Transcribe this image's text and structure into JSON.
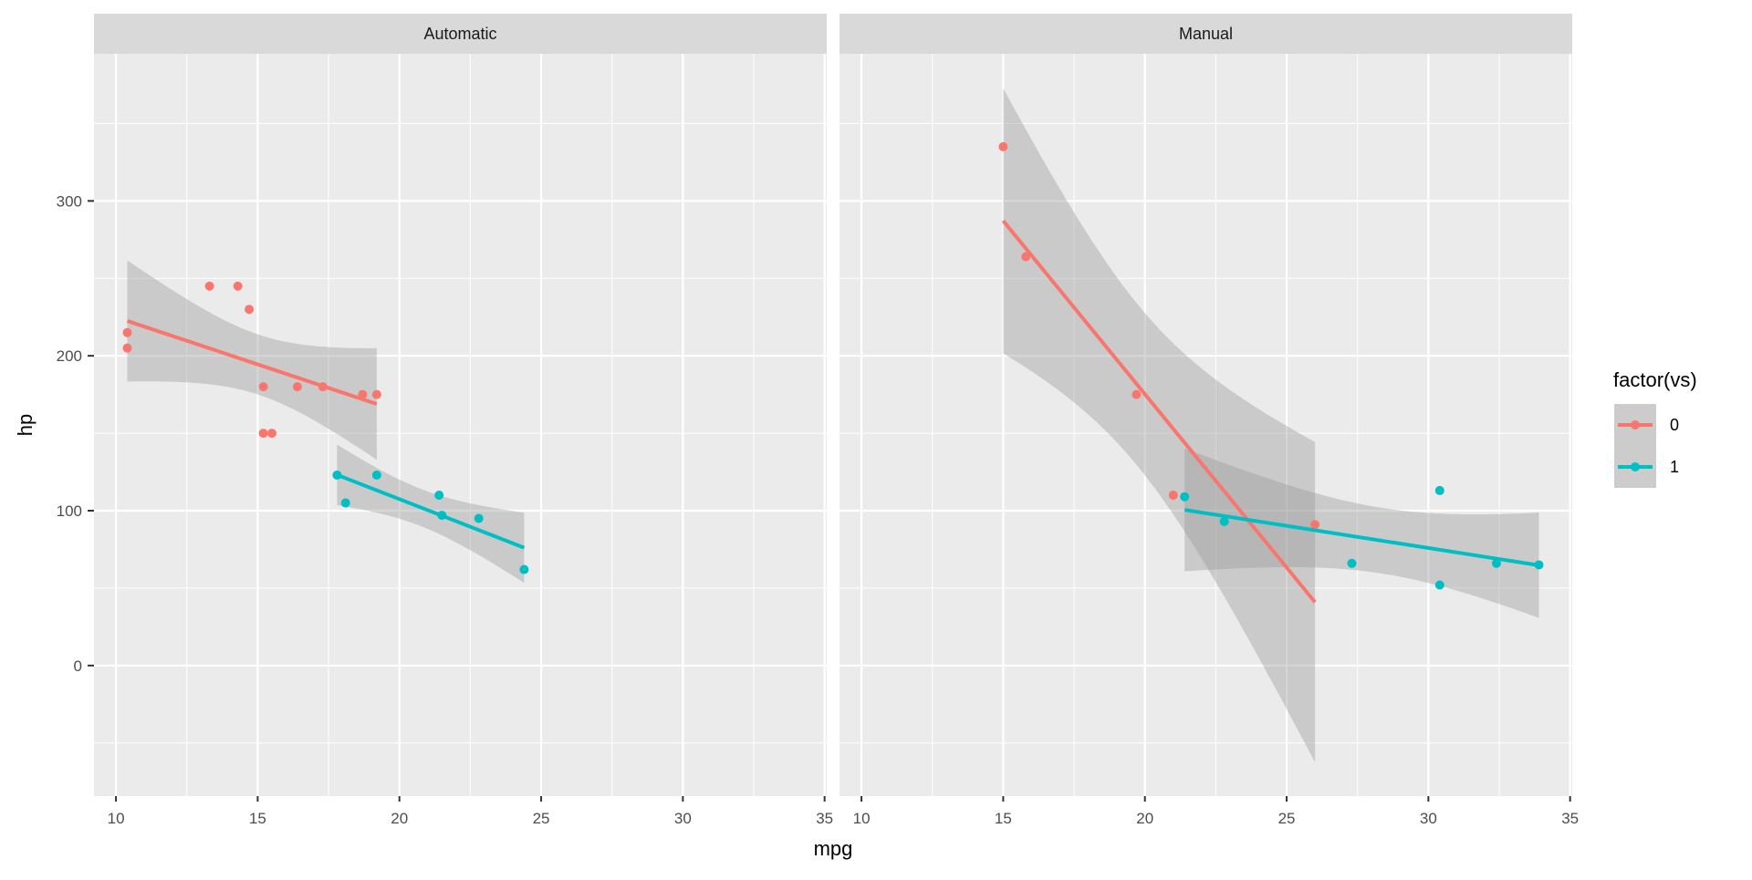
{
  "chart_data": {
    "type": "scatter",
    "xlabel": "mpg",
    "ylabel": "hp",
    "xlim": [
      9.225,
      35.075
    ],
    "ylim": [
      -84.3,
      395
    ],
    "x_ticks": [
      10,
      15,
      20,
      25,
      30,
      35
    ],
    "y_ticks": [
      0,
      100,
      200,
      300
    ],
    "grid": true,
    "smooth": "lm with 95% confidence band",
    "legend": {
      "title": "factor(vs)",
      "position": "right",
      "entries": [
        "0",
        "1"
      ]
    },
    "colors": {
      "0": "#F8766D",
      "1": "#00BFC4",
      "panel": "#EBEBEB",
      "strip": "#D9D9D9",
      "band": "#999999"
    },
    "facets": [
      {
        "label": "Automatic",
        "series": [
          {
            "name": "0",
            "x": [
              18.7,
              14.3,
              16.4,
              17.3,
              15.2,
              10.4,
              10.4,
              14.7,
              15.5,
              15.2,
              13.3,
              19.2
            ],
            "y": [
              175,
              245,
              180,
              180,
              180,
              205,
              215,
              230,
              150,
              150,
              245,
              175
            ]
          },
          {
            "name": "1",
            "x": [
              21.4,
              18.1,
              24.4,
              22.8,
              19.2,
              17.8,
              21.5
            ],
            "y": [
              110,
              105,
              62,
              95,
              123,
              123,
              97
            ]
          }
        ]
      },
      {
        "label": "Manual",
        "series": [
          {
            "name": "0",
            "x": [
              21.0,
              21.0,
              26.0,
              15.8,
              19.7,
              15.0
            ],
            "y": [
              110,
              110,
              91,
              264,
              175,
              335
            ]
          },
          {
            "name": "1",
            "x": [
              22.8,
              32.4,
              30.4,
              33.9,
              27.3,
              30.4,
              21.4
            ],
            "y": [
              93,
              66,
              52,
              65,
              66,
              113,
              109
            ]
          }
        ]
      }
    ]
  }
}
